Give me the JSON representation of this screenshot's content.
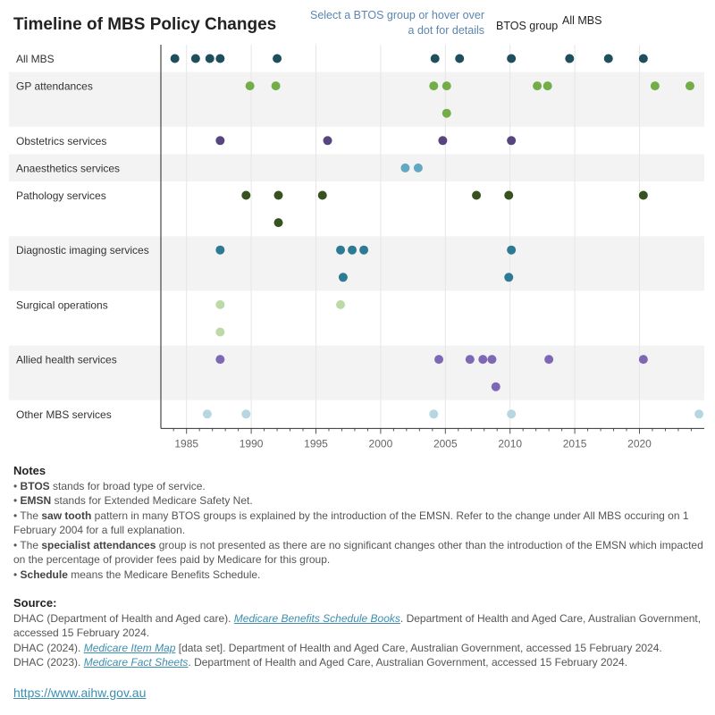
{
  "header": {
    "title": "Timeline of MBS Policy Changes",
    "hint": "Select a BTOS group or hover over a dot for details",
    "legend_btos": "BTOS group",
    "legend_all": "All MBS"
  },
  "chart_data": {
    "type": "scatter",
    "title": "Timeline of MBS Policy Changes",
    "xlim": [
      1983.2,
      2025
    ],
    "xticks": [
      1985,
      1990,
      1995,
      2000,
      2005,
      2010,
      2015,
      2020
    ],
    "grid": true,
    "series": [
      {
        "name": "All MBS",
        "color": "#1f4e5f",
        "rows": [
          [
            1984.1,
            1985.7,
            1986.8,
            1987.6,
            1992.0,
            2004.2,
            2006.1,
            2010.1,
            2014.6,
            2017.6,
            2020.3
          ]
        ]
      },
      {
        "name": "GP attendances",
        "color": "#72ad47",
        "rows": [
          [
            1989.9,
            1991.9,
            2004.1,
            2005.1,
            2012.1,
            2012.9,
            2021.2,
            2023.9
          ],
          [
            2005.1
          ]
        ]
      },
      {
        "name": "Obstetrics services",
        "color": "#56457f",
        "rows": [
          [
            1987.6,
            1995.9,
            2004.8,
            2010.1
          ]
        ]
      },
      {
        "name": "Anaesthetics services",
        "color": "#62a8c2",
        "rows": [
          [
            2001.9,
            2002.9
          ]
        ]
      },
      {
        "name": "Pathology services",
        "color": "#36531f",
        "rows": [
          [
            1989.6,
            1992.1,
            1995.5,
            2007.4,
            2009.9,
            2020.3
          ],
          [
            1992.1
          ]
        ]
      },
      {
        "name": "Diagnostic imaging services",
        "color": "#2c7a93",
        "rows": [
          [
            1987.6,
            1996.9,
            1997.8,
            1998.7,
            2010.1
          ],
          [
            1997.1,
            2009.9
          ]
        ]
      },
      {
        "name": "Surgical operations",
        "color": "#bcdaa8",
        "rows": [
          [
            1987.6,
            1996.9
          ],
          [
            1987.6
          ]
        ]
      },
      {
        "name": "Allied health services",
        "color": "#7e68b6",
        "rows": [
          [
            1987.6,
            2004.5,
            2006.9,
            2007.9,
            2008.6,
            2013.0,
            2020.3
          ],
          [
            2008.9
          ]
        ]
      },
      {
        "name": "Other MBS services",
        "color": "#b6d7e1",
        "rows": [
          [
            1986.6,
            1989.6,
            2004.1,
            2010.1,
            2024.6
          ]
        ]
      }
    ]
  },
  "notes": {
    "heading": "Notes",
    "items": [
      {
        "bold": "BTOS",
        "text": " stands for broad type of service."
      },
      {
        "bold": "EMSN",
        "text": " stands for Extended Medicare Safety Net."
      },
      {
        "pre": "The ",
        "bold": "saw tooth",
        "text": " pattern in many BTOS groups is explained by the introduction of the EMSN. Refer to the change under All MBS occuring on 1 February 2004 for a full explanation."
      },
      {
        "pre": "The ",
        "bold": "specialist attendances",
        "text": " group is not presented as there are no significant changes other than the introduction of the EMSN which impacted on the percentage of provider fees paid by Medicare for this group."
      },
      {
        "bold": "Schedule",
        "text": " means the Medicare Benefits Schedule."
      }
    ]
  },
  "source": {
    "heading": "Source:",
    "items": [
      {
        "pre": "DHAC (Department of Health and Aged care). ",
        "link": "Medicare Benefits Schedule Books",
        "post": ". Department of Health and Aged Care, Australian Government, accessed 15 February 2024."
      },
      {
        "pre": "DHAC (2024). ",
        "link": "Medicare Item Map",
        "post": " [data set]. Department of Health and Aged Care, Australian Government, accessed 15 February 2024."
      },
      {
        "pre": "DHAC (2023). ",
        "link": "Medicare Fact Sheets",
        "post": ". Department of Health and Aged Care, Australian Government, accessed 15 February 2024."
      }
    ]
  },
  "footer_url": "https://www.aihw.gov.au"
}
